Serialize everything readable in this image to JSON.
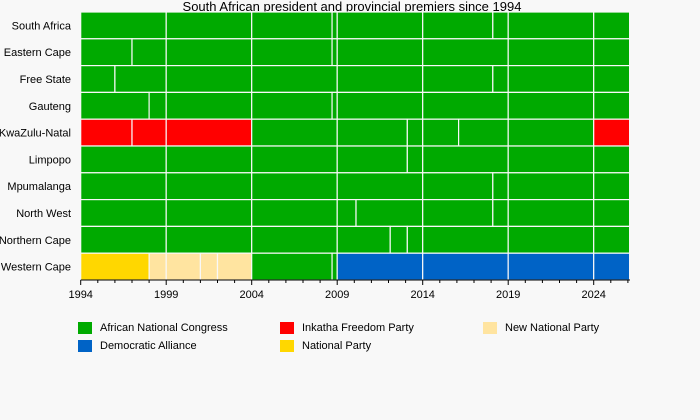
{
  "chart_data": {
    "type": "timeline",
    "title": "South African president and provincial premiers since 1994",
    "xlim": [
      1994,
      2026.1
    ],
    "x_ticks": [
      "1994",
      "1999",
      "2004",
      "2009",
      "2014",
      "2019",
      "2024"
    ],
    "colors": {
      "African National Congress": "#00aa00",
      "Democratic Alliance": "#0063c6",
      "Inkatha Freedom Party": "#ff0000",
      "National Party": "#ffd700",
      "New National Party": "#ffe4a0"
    },
    "legend": [
      "African National Congress",
      "Inkatha Freedom Party",
      "New National Party",
      "Democratic Alliance",
      "National Party"
    ],
    "rows": [
      {
        "name": "South Africa",
        "segments": [
          [
            "African National Congress",
            1994,
            1999
          ],
          [
            "African National Congress",
            1999,
            2004
          ],
          [
            "African National Congress",
            2004,
            2008.7
          ],
          [
            "African National Congress",
            2008.7,
            2009
          ],
          [
            "African National Congress",
            2009,
            2014
          ],
          [
            "African National Congress",
            2014,
            2018.1
          ],
          [
            "African National Congress",
            2018.1,
            2019
          ],
          [
            "African National Congress",
            2019,
            2024
          ],
          [
            "African National Congress",
            2024,
            2026.1
          ]
        ]
      },
      {
        "name": "Eastern Cape",
        "segments": [
          [
            "African National Congress",
            1994,
            1997
          ],
          [
            "African National Congress",
            1997,
            1999
          ],
          [
            "African National Congress",
            1999,
            2004
          ],
          [
            "African National Congress",
            2004,
            2008.7
          ],
          [
            "African National Congress",
            2008.7,
            2009
          ],
          [
            "African National Congress",
            2009,
            2014
          ],
          [
            "African National Congress",
            2014,
            2019
          ],
          [
            "African National Congress",
            2019,
            2024
          ],
          [
            "African National Congress",
            2024,
            2026.1
          ]
        ]
      },
      {
        "name": "Free State",
        "segments": [
          [
            "African National Congress",
            1994,
            1996
          ],
          [
            "African National Congress",
            1996,
            1999
          ],
          [
            "African National Congress",
            1999,
            2004
          ],
          [
            "African National Congress",
            2004,
            2009
          ],
          [
            "African National Congress",
            2009,
            2014
          ],
          [
            "African National Congress",
            2014,
            2018.1
          ],
          [
            "African National Congress",
            2018.1,
            2019
          ],
          [
            "African National Congress",
            2019,
            2024
          ],
          [
            "African National Congress",
            2024,
            2026.1
          ]
        ]
      },
      {
        "name": "Gauteng",
        "segments": [
          [
            "African National Congress",
            1994,
            1998
          ],
          [
            "African National Congress",
            1998,
            1999
          ],
          [
            "African National Congress",
            1999,
            2004
          ],
          [
            "African National Congress",
            2004,
            2008.7
          ],
          [
            "African National Congress",
            2008.7,
            2009
          ],
          [
            "African National Congress",
            2009,
            2014
          ],
          [
            "African National Congress",
            2014,
            2019
          ],
          [
            "African National Congress",
            2019,
            2024
          ],
          [
            "African National Congress",
            2024,
            2026.1
          ]
        ]
      },
      {
        "name": "KwaZulu-Natal",
        "segments": [
          [
            "Inkatha Freedom Party",
            1994,
            1997
          ],
          [
            "Inkatha Freedom Party",
            1997,
            1999
          ],
          [
            "Inkatha Freedom Party",
            1999,
            2004
          ],
          [
            "African National Congress",
            2004,
            2009
          ],
          [
            "African National Congress",
            2009,
            2013.1
          ],
          [
            "African National Congress",
            2013.1,
            2014
          ],
          [
            "African National Congress",
            2014,
            2016.1
          ],
          [
            "African National Congress",
            2016.1,
            2019
          ],
          [
            "African National Congress",
            2019,
            2024
          ],
          [
            "Inkatha Freedom Party",
            2024,
            2026.1
          ]
        ]
      },
      {
        "name": "Limpopo",
        "segments": [
          [
            "African National Congress",
            1994,
            1999
          ],
          [
            "African National Congress",
            1999,
            2004
          ],
          [
            "African National Congress",
            2004,
            2009
          ],
          [
            "African National Congress",
            2009,
            2013.1
          ],
          [
            "African National Congress",
            2013.1,
            2014
          ],
          [
            "African National Congress",
            2014,
            2019
          ],
          [
            "African National Congress",
            2019,
            2024
          ],
          [
            "African National Congress",
            2024,
            2026.1
          ]
        ]
      },
      {
        "name": "Mpumalanga",
        "segments": [
          [
            "African National Congress",
            1994,
            1999
          ],
          [
            "African National Congress",
            1999,
            2004
          ],
          [
            "African National Congress",
            2004,
            2009
          ],
          [
            "African National Congress",
            2009,
            2014
          ],
          [
            "African National Congress",
            2014,
            2018.1
          ],
          [
            "African National Congress",
            2018.1,
            2019
          ],
          [
            "African National Congress",
            2019,
            2024
          ],
          [
            "African National Congress",
            2024,
            2026.1
          ]
        ]
      },
      {
        "name": "North West",
        "segments": [
          [
            "African National Congress",
            1994,
            1999
          ],
          [
            "African National Congress",
            1999,
            2004
          ],
          [
            "African National Congress",
            2004,
            2009
          ],
          [
            "African National Congress",
            2009,
            2010.1
          ],
          [
            "African National Congress",
            2010.1,
            2014
          ],
          [
            "African National Congress",
            2014,
            2018.1
          ],
          [
            "African National Congress",
            2018.1,
            2019
          ],
          [
            "African National Congress",
            2019,
            2024
          ],
          [
            "African National Congress",
            2024,
            2026.1
          ]
        ]
      },
      {
        "name": "Northern Cape",
        "segments": [
          [
            "African National Congress",
            1994,
            1999
          ],
          [
            "African National Congress",
            1999,
            2004
          ],
          [
            "African National Congress",
            2004,
            2009
          ],
          [
            "African National Congress",
            2009,
            2012.1
          ],
          [
            "African National Congress",
            2012.1,
            2013.1
          ],
          [
            "African National Congress",
            2013.1,
            2014
          ],
          [
            "African National Congress",
            2014,
            2019
          ],
          [
            "African National Congress",
            2019,
            2024
          ],
          [
            "African National Congress",
            2024,
            2026.1
          ]
        ]
      },
      {
        "name": "Western Cape",
        "segments": [
          [
            "National Party",
            1994,
            1998
          ],
          [
            "New National Party",
            1998,
            1999
          ],
          [
            "New National Party",
            1999,
            2001
          ],
          [
            "New National Party",
            2001,
            2002
          ],
          [
            "New National Party",
            2002,
            2004
          ],
          [
            "African National Congress",
            2004,
            2008.7
          ],
          [
            "African National Congress",
            2008.7,
            2009
          ],
          [
            "Democratic Alliance",
            2009,
            2014
          ],
          [
            "Democratic Alliance",
            2014,
            2019
          ],
          [
            "Democratic Alliance",
            2019,
            2024
          ],
          [
            "Democratic Alliance",
            2024,
            2026.1
          ]
        ]
      }
    ]
  }
}
